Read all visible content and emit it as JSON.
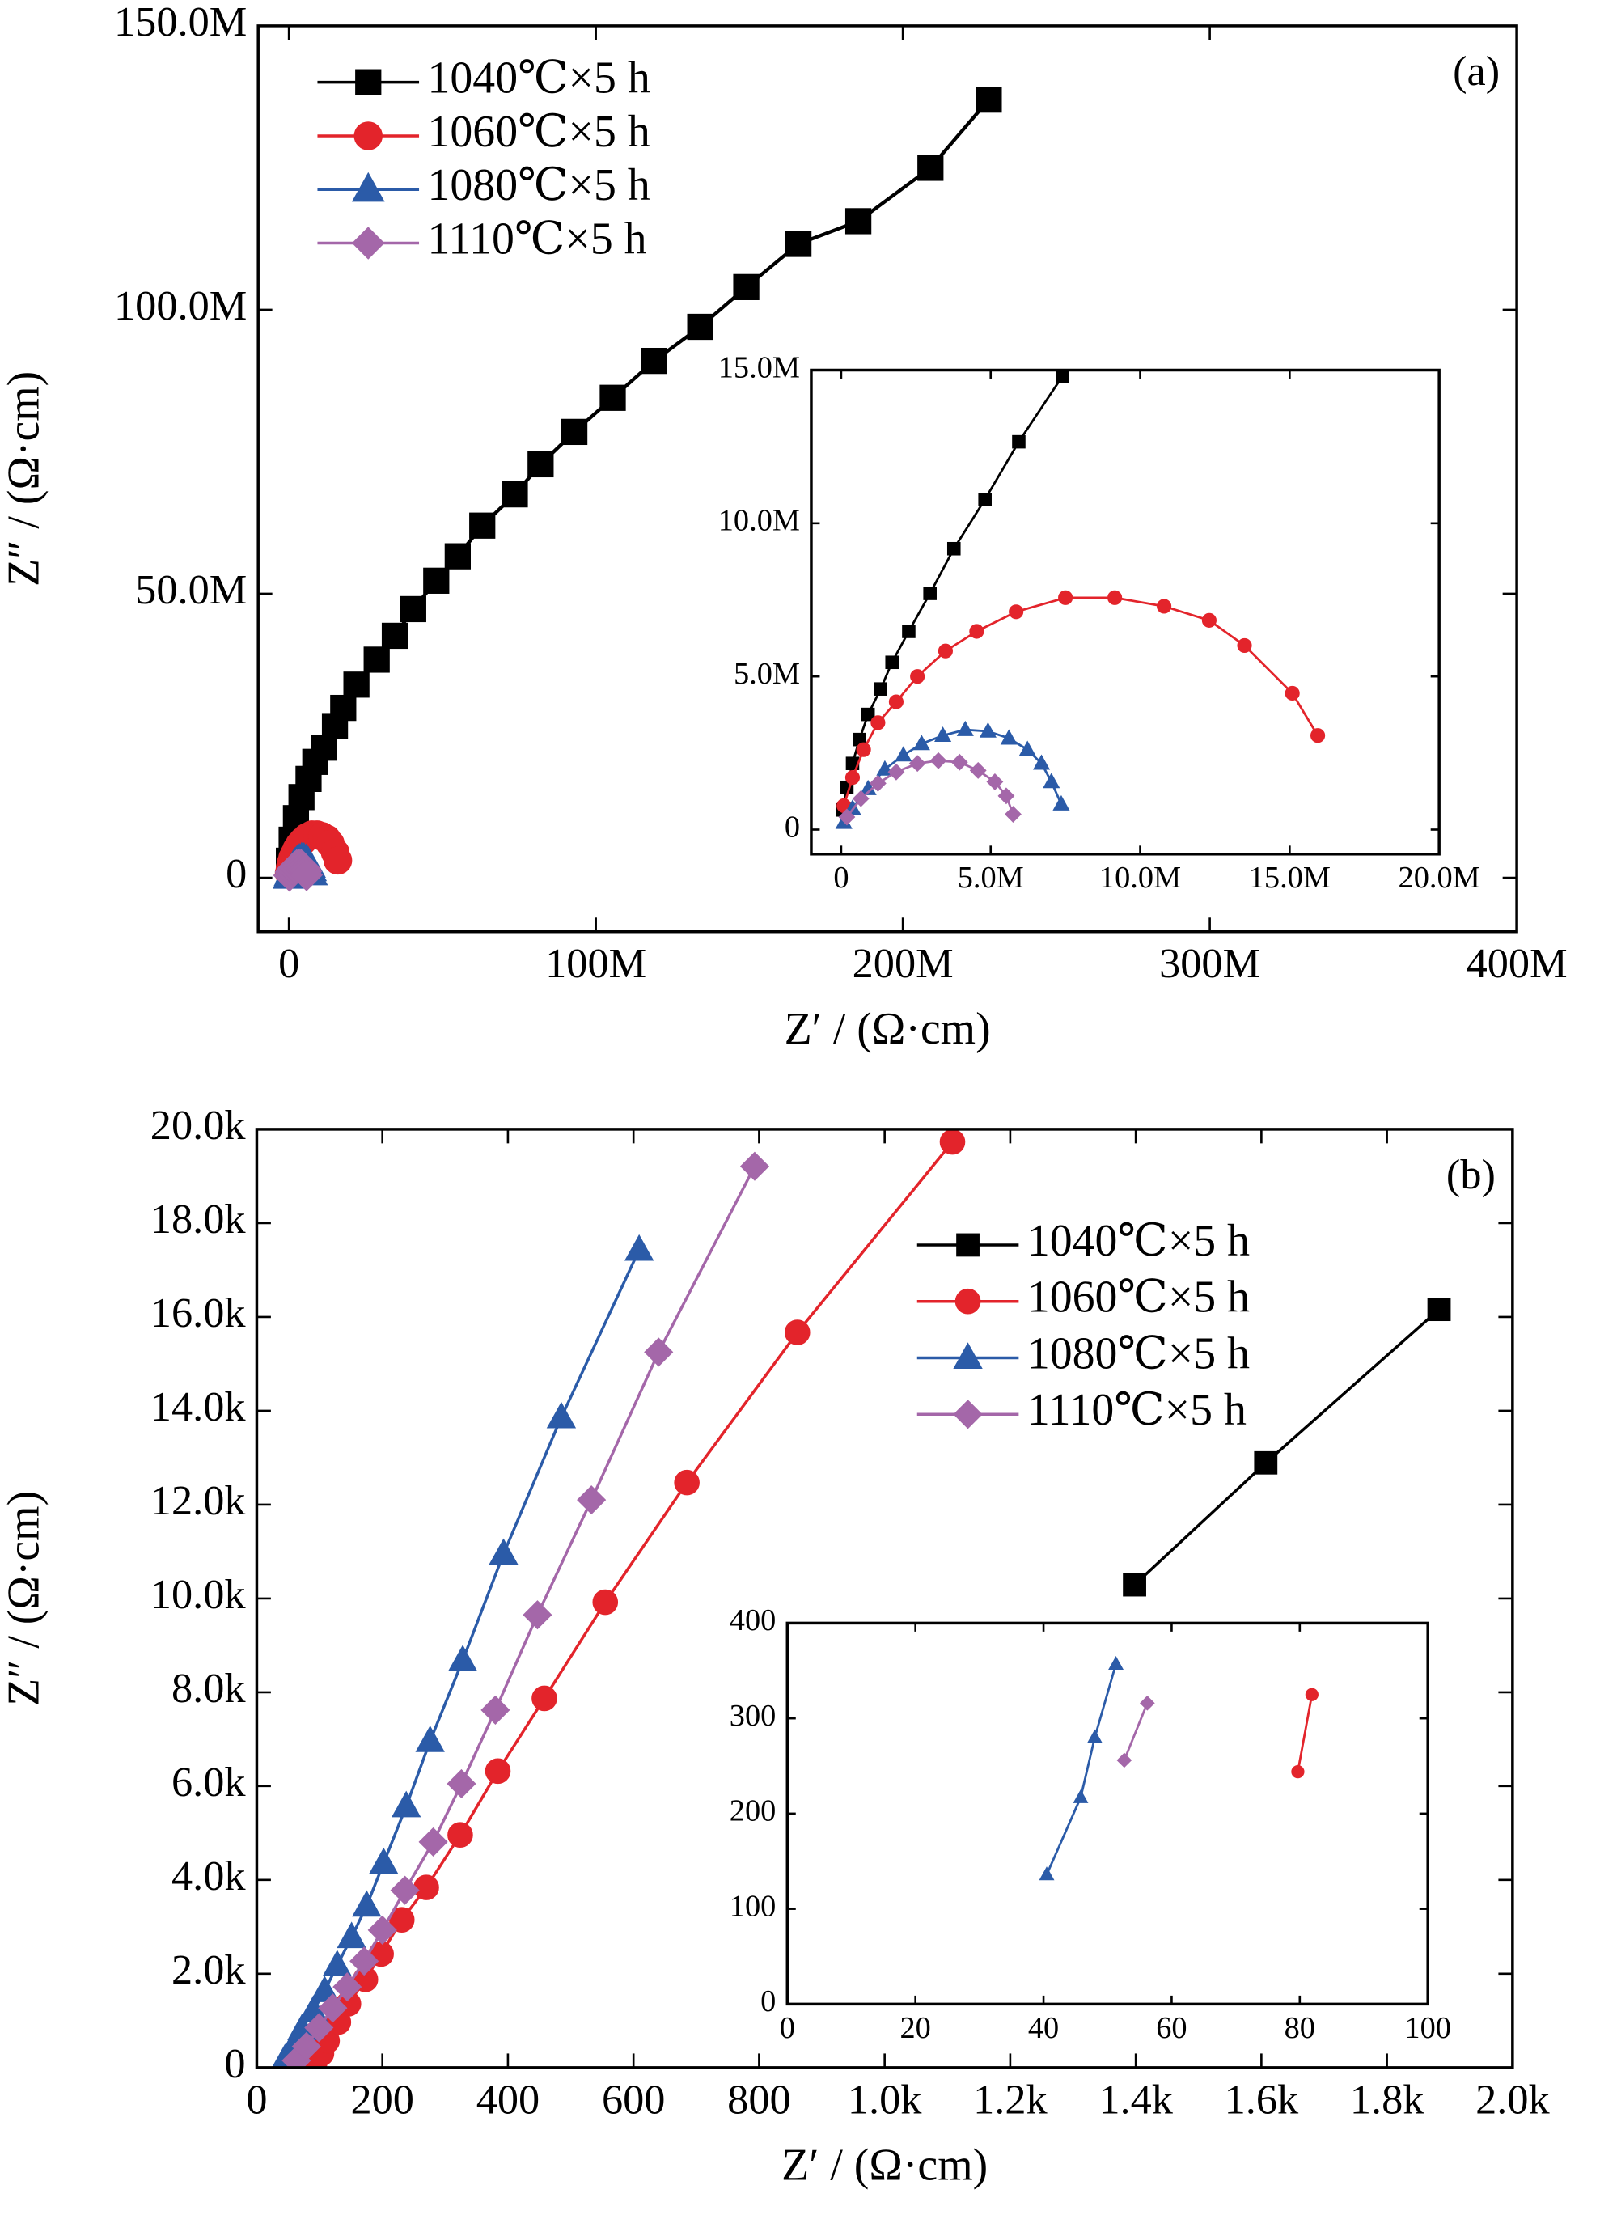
{
  "chart_data": [
    {
      "type": "scatter",
      "xlabel": "Z′ / (Ω·cm)",
      "ylabel": "Z″ / (Ω·cm)",
      "annotation": "(a)",
      "legend": "upper left",
      "xlim": [
        -10000000,
        400000000
      ],
      "ylim": [
        -9500000,
        150000000
      ],
      "xticks": [
        0,
        {
          "value": 100000000,
          "label": "100M"
        },
        {
          "value": 200000000,
          "label": "200M"
        },
        {
          "value": 300000000,
          "label": "300M"
        },
        {
          "value": 400000000,
          "label": "400M"
        }
      ],
      "yticks": [
        0,
        {
          "value": 50000000,
          "label": "50.0M"
        },
        {
          "value": 100000000,
          "label": "100.0M"
        },
        {
          "value": 150000000,
          "label": "150.0M"
        }
      ],
      "series": [
        {
          "name": "1040℃×5 h",
          "color": "#000000",
          "marker": "square",
          "x": [
            0,
            900000,
            2300000,
            4100000,
            6400000,
            8600000,
            11400000,
            15000000,
            17700000,
            22000000,
            28600000,
            34500000,
            40500000,
            48000000,
            55000000,
            63000000,
            73600000,
            82000000,
            93000000,
            105500000,
            119000000,
            134000000,
            149000000,
            166000000,
            185500000,
            209000000,
            228000000
          ],
          "values": [
            3000000,
            6700000,
            10500000,
            14200000,
            17400000,
            20400000,
            22900000,
            26700000,
            29900000,
            34000000,
            38400000,
            42600000,
            47300000,
            52300000,
            56600000,
            62000000,
            67500000,
            72800000,
            78500000,
            84500000,
            91000000,
            97000000,
            104000000,
            111600000,
            115600000,
            125000000,
            137000000
          ]
        },
        {
          "name": "1060℃×5 h",
          "color": "#e3242b",
          "marker": "circle",
          "x": [
            90000,
            380000,
            750000,
            1230000,
            1840000,
            2550000,
            3490000,
            4530000,
            5850000,
            7500000,
            9150000,
            10800000,
            12310000,
            13490000,
            15090000,
            15940000
          ],
          "values": [
            780000,
            1700000,
            2610000,
            3490000,
            4170000,
            5000000,
            5830000,
            6470000,
            7110000,
            7570000,
            7570000,
            7290000,
            6830000,
            6010000,
            4450000,
            3070000
          ]
        },
        {
          "name": "1080℃×5 h",
          "color": "#2b5ba8",
          "marker": "triangle",
          "x": [
            90000,
            380000,
            900000,
            1460000,
            2080000,
            2690000,
            3400000,
            4150000,
            4910000,
            5610000,
            6230000,
            6700000,
            7030000,
            7360000
          ],
          "values": [
            230000,
            690000,
            1330000,
            1970000,
            2430000,
            2800000,
            3070000,
            3260000,
            3210000,
            2980000,
            2610000,
            2160000,
            1560000,
            830000
          ]
        },
        {
          "name": "1110℃×5 h",
          "color": "#a467a9",
          "marker": "diamond",
          "x": [
            190000,
            660000,
            1230000,
            1840000,
            2550000,
            3250000,
            3960000,
            4580000,
            5140000,
            5520000,
            5750000
          ],
          "values": [
            410000,
            1010000,
            1510000,
            1880000,
            2160000,
            2250000,
            2200000,
            1930000,
            1560000,
            1100000,
            500000
          ]
        }
      ]
    },
    {
      "type": "scatter",
      "xlim": [
        -1000000,
        20000000
      ],
      "ylim": [
        -800000,
        15000000
      ],
      "xticks": [
        0,
        {
          "value": 5000000,
          "label": "5.0M"
        },
        {
          "value": 10000000,
          "label": "10.0M"
        },
        {
          "value": 15000000,
          "label": "15.0M"
        },
        {
          "value": 20000000,
          "label": "20.0M"
        }
      ],
      "yticks": [
        0,
        {
          "value": 5000000,
          "label": "5.0M"
        },
        {
          "value": 10000000,
          "label": "10.0M"
        },
        {
          "value": 15000000,
          "label": "15.0M"
        }
      ],
      "series": [
        {
          "color": "#000000",
          "marker": "square",
          "x": [
            50000,
            190000,
            380000,
            610000,
            900000,
            1320000,
            1700000,
            2260000,
            2970000,
            3770000,
            4810000,
            5940000,
            7400000
          ],
          "values": [
            640000,
            1380000,
            2160000,
            2940000,
            3760000,
            4590000,
            5460000,
            6470000,
            7710000,
            9170000,
            10780000,
            12660000,
            14800000
          ]
        },
        {
          "color": "#e3242b",
          "marker": "circle",
          "x": [
            90000,
            380000,
            750000,
            1230000,
            1840000,
            2550000,
            3490000,
            4530000,
            5850000,
            7500000,
            9150000,
            10800000,
            12310000,
            13490000,
            15090000,
            15940000
          ],
          "values": [
            780000,
            1700000,
            2610000,
            3490000,
            4170000,
            5000000,
            5830000,
            6470000,
            7110000,
            7570000,
            7570000,
            7290000,
            6830000,
            6010000,
            4450000,
            3070000
          ]
        },
        {
          "color": "#2b5ba8",
          "marker": "triangle",
          "x": [
            90000,
            380000,
            900000,
            1460000,
            2080000,
            2690000,
            3400000,
            4150000,
            4910000,
            5610000,
            6230000,
            6700000,
            7030000,
            7360000
          ],
          "values": [
            230000,
            690000,
            1330000,
            1970000,
            2430000,
            2800000,
            3070000,
            3260000,
            3210000,
            2980000,
            2610000,
            2160000,
            1560000,
            830000
          ]
        },
        {
          "color": "#a467a9",
          "marker": "diamond",
          "x": [
            190000,
            660000,
            1230000,
            1840000,
            2550000,
            3250000,
            3960000,
            4580000,
            5140000,
            5520000,
            5750000
          ],
          "values": [
            410000,
            1010000,
            1510000,
            1880000,
            2160000,
            2250000,
            2200000,
            1930000,
            1560000,
            1100000,
            500000
          ]
        }
      ]
    },
    {
      "type": "scatter",
      "xlabel": "Z′ / (Ω·cm)",
      "ylabel": "Z″ / (Ω·cm)",
      "annotation": "(b)",
      "legend": "upper right",
      "xlim": [
        0,
        2000
      ],
      "ylim": [
        0,
        20000
      ],
      "xticks": [
        0,
        200,
        400,
        600,
        800,
        {
          "value": 1000,
          "label": "1.0k"
        },
        {
          "value": 1200,
          "label": "1.2k"
        },
        {
          "value": 1400,
          "label": "1.4k"
        },
        {
          "value": 1600,
          "label": "1.6k"
        },
        {
          "value": 1800,
          "label": "1.8k"
        },
        {
          "value": 2000,
          "label": "2.0k"
        }
      ],
      "yticks": [
        0,
        {
          "value": 2000,
          "label": "2.0k"
        },
        {
          "value": 4000,
          "label": "4.0k"
        },
        {
          "value": 6000,
          "label": "6.0k"
        },
        {
          "value": 8000,
          "label": "8.0k"
        },
        {
          "value": 10000,
          "label": "10.0k"
        },
        {
          "value": 12000,
          "label": "12.0k"
        },
        {
          "value": 14000,
          "label": "14.0k"
        },
        {
          "value": 16000,
          "label": "16.0k"
        },
        {
          "value": 18000,
          "label": "18.0k"
        },
        {
          "value": 20000,
          "label": "20.0k"
        }
      ],
      "series": [
        {
          "name": "1040℃×5 h",
          "color": "#000000",
          "marker": "square",
          "x": [
            1398,
            1607,
            1883
          ],
          "values": [
            10290,
            12890,
            16160
          ]
        },
        {
          "name": "1060℃×5 h",
          "color": "#e3242b",
          "marker": "circle",
          "x": [
            92,
            103,
            112,
            130,
            146,
            173,
            198,
            231,
            270,
            324,
            384,
            458,
            555,
            685,
            861,
            1108
          ],
          "values": [
            90,
            300,
            570,
            970,
            1360,
            1880,
            2420,
            3150,
            3840,
            4960,
            6320,
            7870,
            9920,
            12470,
            15670,
            19730
          ]
        },
        {
          "name": "1080℃×5 h",
          "color": "#2b5ba8",
          "marker": "triangle",
          "x": [
            45,
            58,
            72,
            90,
            108,
            128,
            151,
            175,
            202,
            238,
            276,
            328,
            393,
            485,
            609
          ],
          "values": [
            180,
            450,
            820,
            1210,
            1630,
            2180,
            2780,
            3450,
            4360,
            5570,
            6960,
            8680,
            10950,
            13860,
            17430
          ]
        },
        {
          "name": "1110℃×5 h",
          "color": "#a467a9",
          "marker": "diamond",
          "x": [
            63,
            79,
            99,
            121,
            144,
            171,
            200,
            236,
            281,
            326,
            380,
            447,
            533,
            640,
            793
          ],
          "values": [
            150,
            450,
            850,
            1270,
            1720,
            2270,
            2930,
            3780,
            4810,
            6050,
            7620,
            9650,
            12100,
            15250,
            19210
          ]
        }
      ]
    },
    {
      "type": "scatter",
      "xlim": [
        0,
        100
      ],
      "ylim": [
        0,
        400
      ],
      "xticks": [
        0,
        20,
        40,
        60,
        80,
        100
      ],
      "yticks": [
        0,
        100,
        200,
        300,
        400
      ],
      "series": [
        {
          "color": "#e3242b",
          "marker": "circle",
          "x": [
            79.7,
            81.9
          ],
          "values": [
            244,
            325
          ]
        },
        {
          "color": "#2b5ba8",
          "marker": "triangle",
          "x": [
            40.5,
            45.8,
            48,
            51.3
          ],
          "values": [
            136,
            217,
            280,
            357
          ]
        },
        {
          "color": "#a467a9",
          "marker": "diamond",
          "x": [
            52.6,
            56.2
          ],
          "values": [
            256,
            316
          ]
        }
      ]
    }
  ]
}
